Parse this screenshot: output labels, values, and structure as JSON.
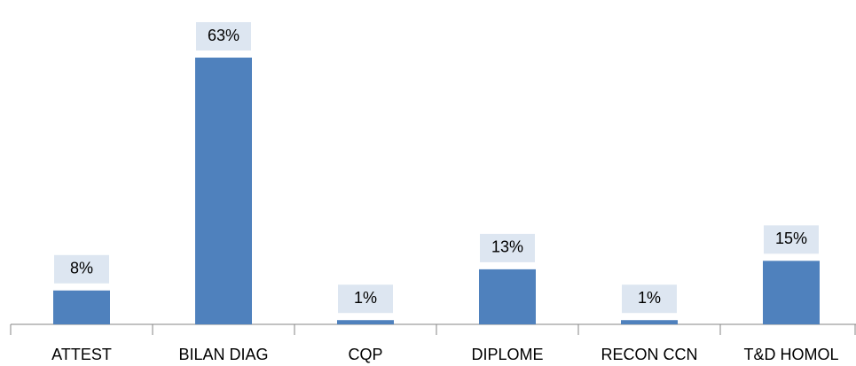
{
  "chart_data": {
    "type": "bar",
    "categories": [
      "ATTEST",
      "BILAN DIAG",
      "CQP",
      "DIPLOME",
      "RECON CCN",
      "T&D HOMOL"
    ],
    "values": [
      8,
      63,
      1,
      13,
      1,
      15
    ],
    "value_labels": [
      "8%",
      "63%",
      "1%",
      "13%",
      "1%",
      "15%"
    ],
    "color": "#4f81bd"
  }
}
